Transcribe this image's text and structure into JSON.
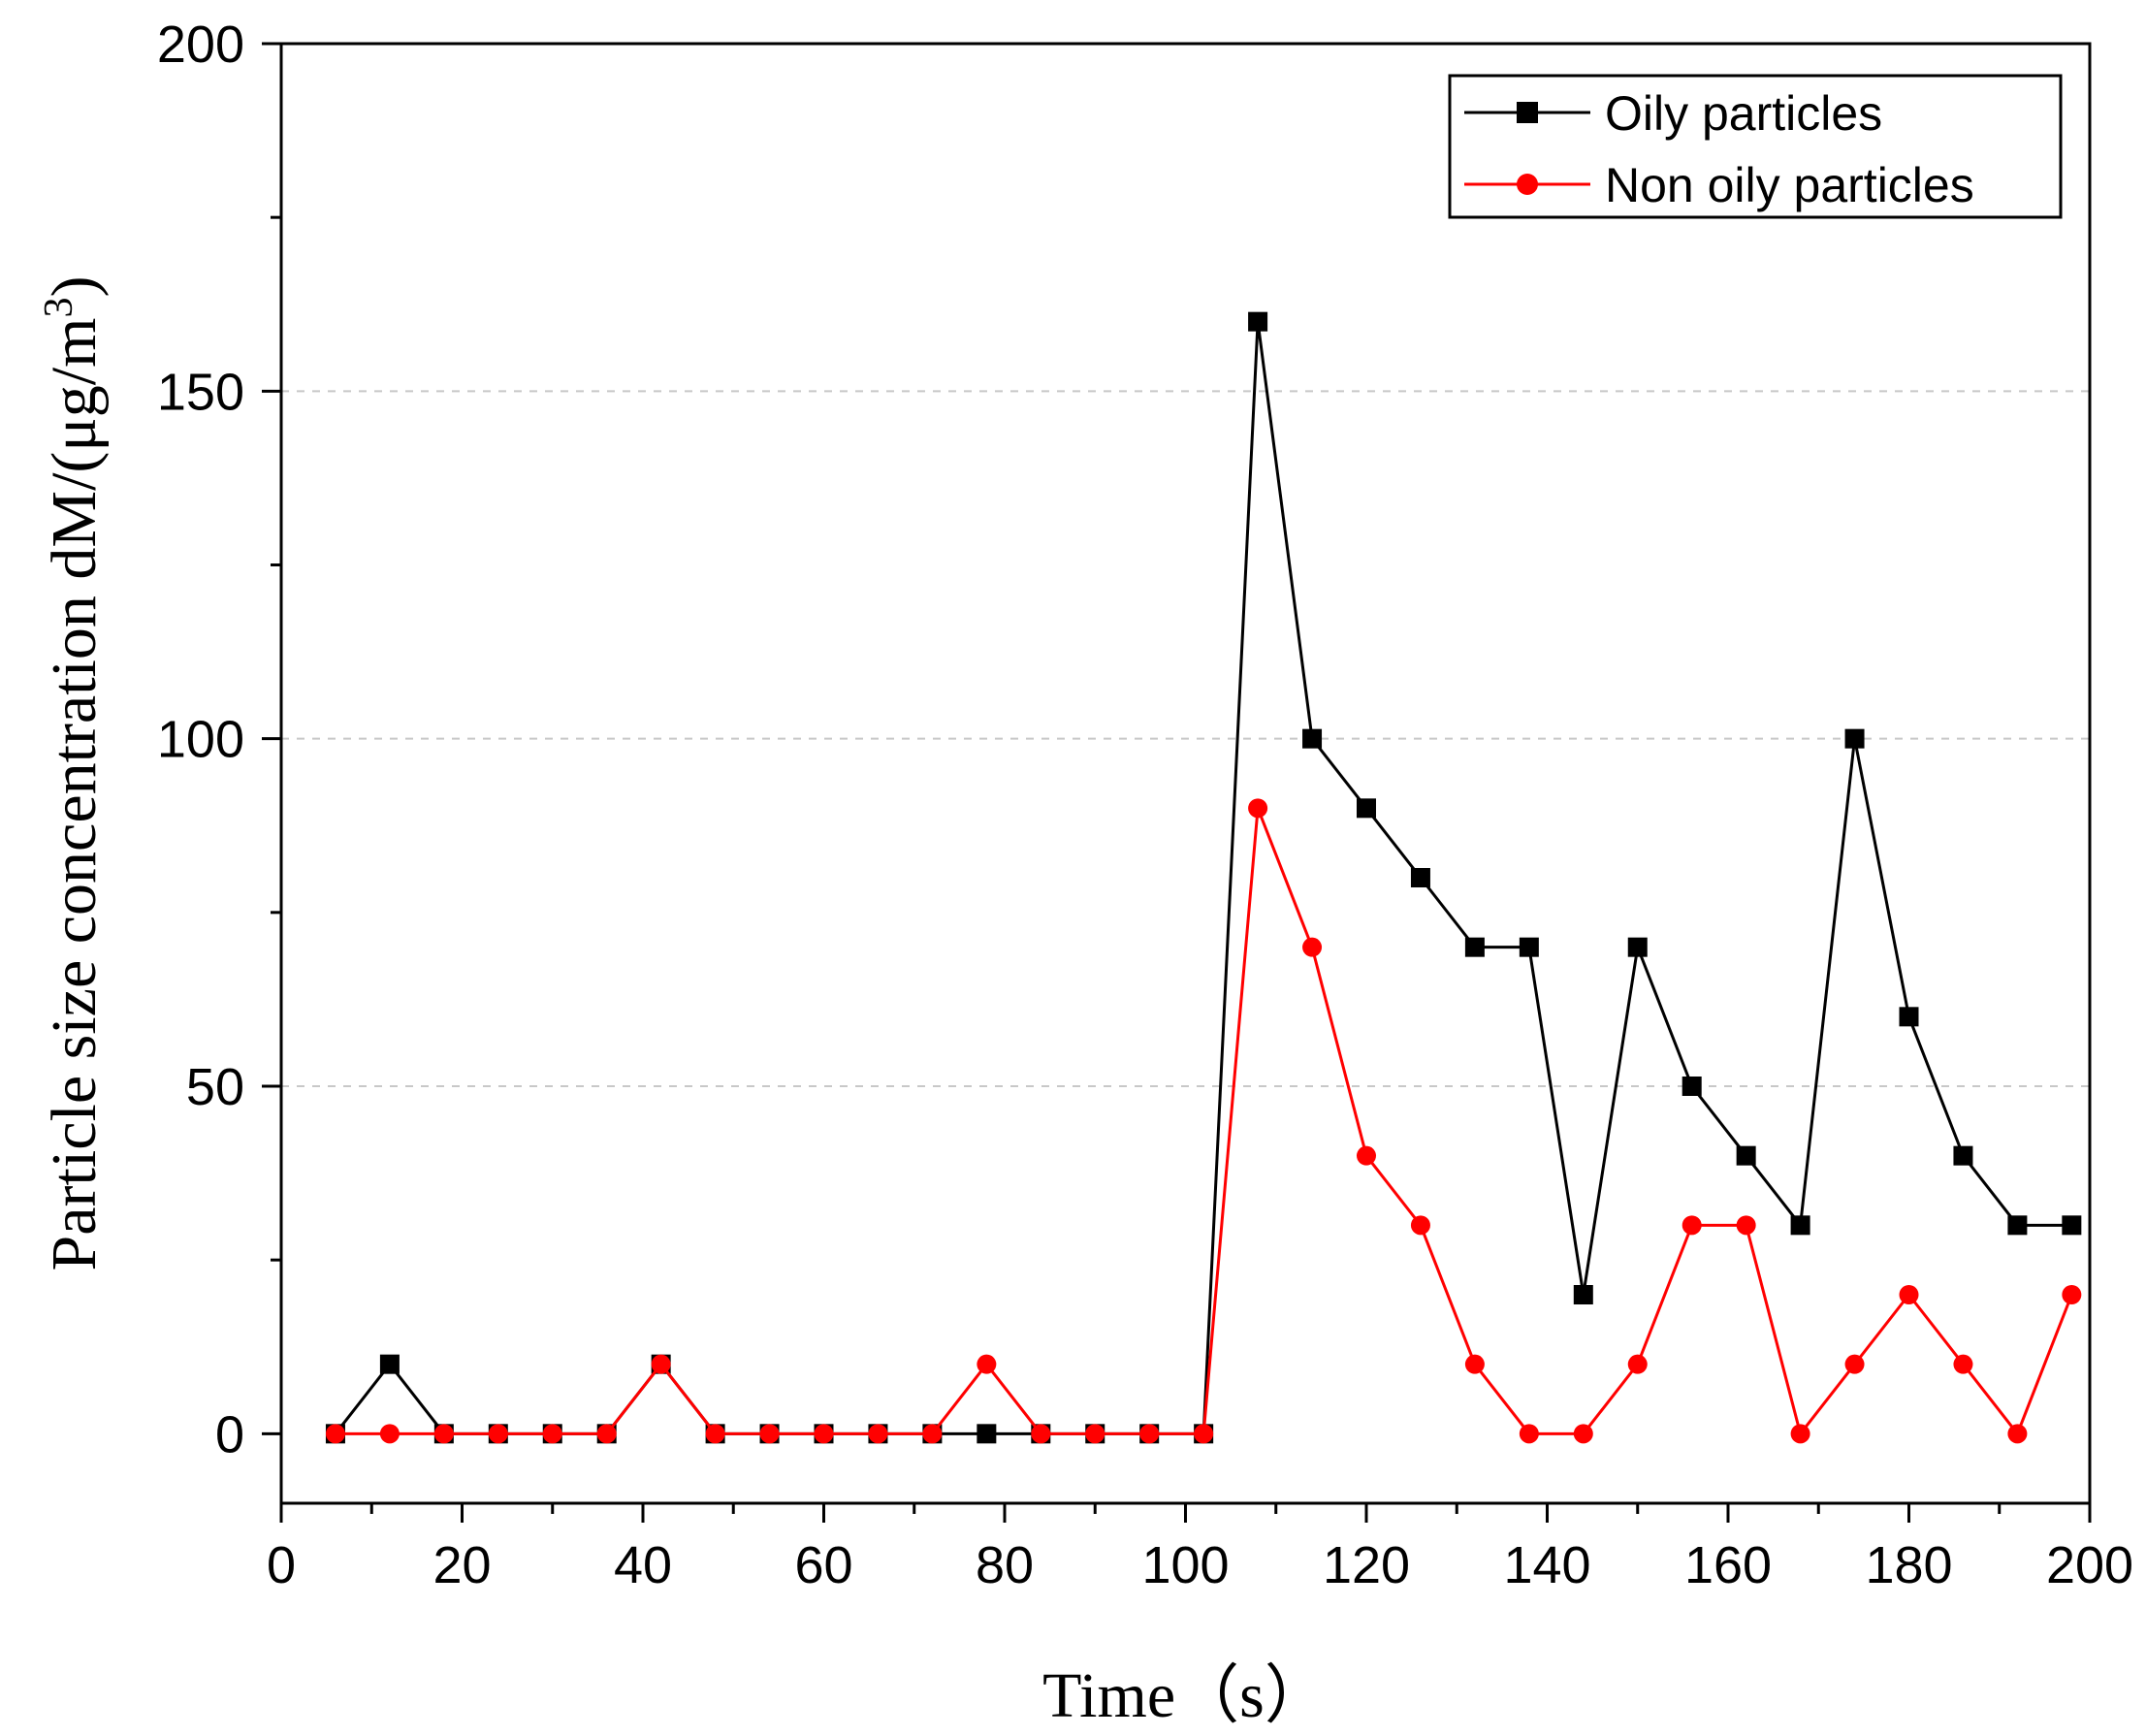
{
  "chart_data": {
    "type": "line",
    "title": "",
    "xlabel": "Time（s）",
    "ylabel": "Particle size concentration dM/(μg/m",
    "ylabel_superscript": "3",
    "ylabel_close": ")",
    "xlim": [
      0,
      200
    ],
    "ylim": [
      -10,
      200
    ],
    "xticks": [
      0,
      20,
      40,
      60,
      80,
      100,
      120,
      140,
      160,
      180,
      200
    ],
    "yticks": [
      0,
      50,
      100,
      150,
      200
    ],
    "xtick_labels": [
      "0",
      "20",
      "40",
      "60",
      "80",
      "100",
      "120",
      "140",
      "160",
      "180",
      "200"
    ],
    "ytick_labels": [
      "0",
      "50",
      "100",
      "150",
      "200"
    ],
    "grid": "horizontal dashed at 50, 100, 150",
    "legend_position": "top-right",
    "x": [
      6,
      12,
      18,
      24,
      30,
      36,
      42,
      48,
      54,
      60,
      66,
      72,
      78,
      84,
      90,
      96,
      102,
      108,
      114,
      120,
      126,
      132,
      138,
      144,
      150,
      156,
      162,
      168,
      174,
      180,
      186,
      192,
      198
    ],
    "series": [
      {
        "name": "Oily particles",
        "color": "#000000",
        "marker": "square",
        "values": [
          0,
          10,
          0,
          0,
          0,
          0,
          10,
          0,
          0,
          0,
          0,
          0,
          0,
          0,
          0,
          0,
          0,
          160,
          100,
          90,
          80,
          70,
          70,
          20,
          70,
          50,
          40,
          30,
          100,
          60,
          40,
          30,
          30
        ]
      },
      {
        "name": "Non oily particles",
        "color": "#ff0000",
        "marker": "circle",
        "values": [
          0,
          0,
          0,
          0,
          0,
          0,
          10,
          0,
          0,
          0,
          0,
          0,
          10,
          0,
          0,
          0,
          0,
          90,
          70,
          40,
          30,
          10,
          0,
          0,
          10,
          30,
          30,
          0,
          10,
          20,
          10,
          0,
          20
        ]
      }
    ]
  }
}
